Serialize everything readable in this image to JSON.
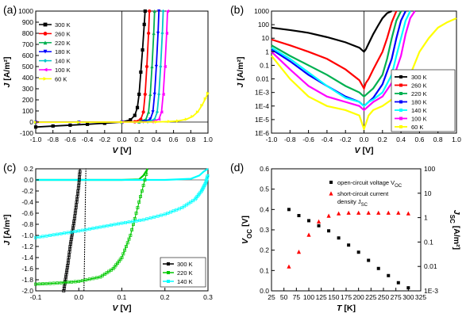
{
  "chart_data": [
    {
      "panel": "(a)",
      "type": "line",
      "xlabel": "V [V]",
      "ylabel": "J [A/m²]",
      "xlim": [
        -1.0,
        1.0
      ],
      "ylim": [
        -100,
        1000
      ],
      "log_y": false,
      "grid": false,
      "legend_position": "top-left",
      "xticks": [
        "-1.0",
        "-0.8",
        "-0.6",
        "-0.4",
        "-0.2",
        "0.0",
        "0.2",
        "0.4",
        "0.6",
        "0.8",
        "1.0"
      ],
      "yticks": [
        "-100",
        "0",
        "100",
        "200",
        "300",
        "400",
        "500",
        "600",
        "700",
        "800",
        "900",
        "1000"
      ],
      "series": [
        {
          "name": "300 K",
          "color": "#000000",
          "marker": "square",
          "x": [
            -1.0,
            -0.8,
            -0.6,
            -0.4,
            -0.2,
            0.0,
            0.1,
            0.15,
            0.18,
            0.2,
            0.22,
            0.24,
            0.26,
            0.27
          ],
          "y": [
            -45,
            -36,
            -28,
            -20,
            -11,
            0,
            20,
            60,
            130,
            250,
            450,
            650,
            880,
            1000
          ]
        },
        {
          "name": "260 K",
          "color": "#ff0000",
          "marker": "circle",
          "x": [
            -1.0,
            -0.5,
            0.0,
            0.15,
            0.22,
            0.25,
            0.27,
            0.29,
            0.31,
            0.32
          ],
          "y": [
            -2,
            -1,
            0,
            3,
            25,
            90,
            250,
            500,
            800,
            1000
          ]
        },
        {
          "name": "220 K",
          "color": "#00b050",
          "marker": "triangle-up",
          "x": [
            -1.0,
            -0.5,
            0.0,
            0.2,
            0.28,
            0.31,
            0.33,
            0.35,
            0.37,
            0.38
          ],
          "y": [
            -1,
            -1,
            0,
            2,
            25,
            90,
            250,
            500,
            800,
            1000
          ]
        },
        {
          "name": "180 K",
          "color": "#0000ff",
          "marker": "triangle-down",
          "x": [
            -1.0,
            -0.5,
            0.0,
            0.25,
            0.33,
            0.36,
            0.38,
            0.4,
            0.42,
            0.43
          ],
          "y": [
            -1,
            -1,
            0,
            2,
            25,
            90,
            250,
            500,
            800,
            1000
          ]
        },
        {
          "name": "140 K",
          "color": "#00c8c8",
          "marker": "diamond",
          "x": [
            -1.0,
            -0.5,
            0.0,
            0.3,
            0.38,
            0.41,
            0.43,
            0.45,
            0.47,
            0.48
          ],
          "y": [
            -1,
            -1,
            0,
            2,
            25,
            90,
            250,
            500,
            800,
            1000
          ]
        },
        {
          "name": "100 K",
          "color": "#ff00ff",
          "marker": "triangle-left",
          "x": [
            -1.0,
            -0.5,
            0.0,
            0.35,
            0.43,
            0.46,
            0.48,
            0.5,
            0.52,
            0.53
          ],
          "y": [
            -1,
            -1,
            0,
            2,
            25,
            90,
            250,
            500,
            800,
            1000
          ]
        },
        {
          "name": "60 K",
          "color": "#ffff00",
          "marker": "triangle-right",
          "x": [
            -1.0,
            -0.5,
            0.0,
            0.4,
            0.55,
            0.65,
            0.75,
            0.82,
            0.88,
            0.93,
            0.97,
            1.0
          ],
          "y": [
            -1,
            -1,
            0,
            1,
            5,
            10,
            25,
            50,
            90,
            150,
            210,
            260
          ]
        }
      ]
    },
    {
      "panel": "(b)",
      "type": "line",
      "xlabel": "V [V]",
      "ylabel": "J [A/m²]",
      "xlim": [
        -1.0,
        1.0
      ],
      "ylim": [
        1e-06,
        1000
      ],
      "log_y": true,
      "grid": false,
      "legend_position": "bottom-right",
      "xticks": [
        "-1.0",
        "-0.8",
        "-0.6",
        "-0.4",
        "-0.2",
        "0.0",
        "0.2",
        "0.4",
        "0.6",
        "0.8",
        "1.0"
      ],
      "yticks": [
        "1000",
        "100",
        "10",
        "1",
        "0.1",
        "0.01",
        "1E-3",
        "1E-4",
        "1E-5",
        "1E-6"
      ],
      "series": [
        {
          "name": "300 K",
          "color": "#000000",
          "x": [
            -1.0,
            -0.8,
            -0.6,
            -0.4,
            -0.2,
            -0.05,
            0.0,
            0.02,
            0.05,
            0.1,
            0.15,
            0.2,
            0.25,
            0.3
          ],
          "y": [
            60,
            40,
            25,
            12,
            5,
            2,
            1,
            1.5,
            4,
            20,
            80,
            300,
            700,
            1000
          ]
        },
        {
          "name": "260 K",
          "color": "#ff0000",
          "x": [
            -1.0,
            -0.8,
            -0.6,
            -0.4,
            -0.2,
            -0.05,
            0.0,
            0.02,
            0.05,
            0.1,
            0.2,
            0.25,
            0.3,
            0.35
          ],
          "y": [
            8,
            3,
            1,
            0.3,
            0.05,
            0.008,
            0.002,
            0.005,
            0.01,
            0.05,
            1,
            10,
            150,
            1000
          ]
        },
        {
          "name": "220 K",
          "color": "#00b050",
          "x": [
            -1.0,
            -0.8,
            -0.6,
            -0.4,
            -0.2,
            -0.05,
            0.0,
            0.05,
            0.1,
            0.2,
            0.25,
            0.3,
            0.35,
            0.4
          ],
          "y": [
            3,
            0.5,
            0.1,
            0.02,
            0.003,
            0.001,
            0.0005,
            0.001,
            0.002,
            0.02,
            0.3,
            10,
            200,
            1000
          ]
        },
        {
          "name": "180 K",
          "color": "#0000ff",
          "x": [
            -1.0,
            -0.8,
            -0.6,
            -0.4,
            -0.2,
            -0.05,
            0.0,
            0.05,
            0.1,
            0.2,
            0.3,
            0.35,
            0.4,
            0.45
          ],
          "y": [
            1.5,
            0.2,
            0.02,
            0.003,
            0.0005,
            0.0002,
            0.0001,
            0.0002,
            0.0004,
            0.004,
            0.3,
            10,
            200,
            1000
          ]
        },
        {
          "name": "140 K",
          "color": "#00ffff",
          "x": [
            -1.0,
            -0.8,
            -0.6,
            -0.4,
            -0.2,
            -0.05,
            0.0,
            0.05,
            0.1,
            0.2,
            0.3,
            0.35,
            0.4,
            0.45,
            0.5
          ],
          "y": [
            2,
            0.3,
            0.03,
            0.003,
            0.0004,
            0.0002,
            0.0001,
            0.0002,
            0.0003,
            0.001,
            0.02,
            0.5,
            10,
            200,
            1000
          ]
        },
        {
          "name": "100 K",
          "color": "#ff00ff",
          "x": [
            -1.0,
            -0.8,
            -0.6,
            -0.4,
            -0.2,
            -0.05,
            0.0,
            0.05,
            0.1,
            0.2,
            0.3,
            0.4,
            0.45,
            0.5,
            0.55
          ],
          "y": [
            1,
            0.05,
            0.003,
            0.0005,
            0.0002,
            0.0001,
            5e-05,
            0.0001,
            0.0002,
            0.0005,
            0.005,
            0.5,
            20,
            300,
            1000
          ]
        },
        {
          "name": "60 K",
          "color": "#ffff00",
          "x": [
            -1.0,
            -0.8,
            -0.6,
            -0.4,
            -0.2,
            -0.05,
            0.0,
            0.05,
            0.1,
            0.2,
            0.3,
            0.4,
            0.5,
            0.6,
            0.7,
            0.8,
            0.9,
            1.0
          ],
          "y": [
            0.5,
            0.01,
            0.0005,
            0.0001,
            5e-05,
            2e-05,
            2e-06,
            2e-05,
            5e-05,
            0.0001,
            0.0003,
            0.001,
            0.02,
            1,
            10,
            60,
            150,
            300
          ]
        }
      ]
    },
    {
      "panel": "(c)",
      "type": "line",
      "xlabel": "V [V]",
      "ylabel": "J [A/m²]",
      "xlim": [
        -0.1,
        0.3
      ],
      "ylim": [
        -2.0,
        0.2
      ],
      "log_y": false,
      "grid": false,
      "legend_position": "bottom-right",
      "xticks": [
        "-0.1",
        "0.0",
        "0.1",
        "0.2",
        "0.3"
      ],
      "yticks": [
        "0.2",
        "0.0",
        "-0.2",
        "-0.4",
        "-0.6",
        "-0.8",
        "-1.0",
        "-1.2",
        "-1.4",
        "-1.6",
        "-1.8",
        "-2.0"
      ],
      "series": [
        {
          "name": "300 K",
          "color": "#000000",
          "x": [
            -0.035,
            -0.03,
            -0.025,
            -0.02,
            -0.015,
            -0.01,
            -0.005,
            0.0,
            0.003
          ],
          "y": [
            -2.0,
            -1.75,
            -1.5,
            -1.2,
            -0.95,
            -0.7,
            -0.4,
            -0.1,
            0.2
          ]
        },
        {
          "name": "220 K",
          "color": "#00c800",
          "x": [
            -0.1,
            -0.05,
            0.0,
            0.05,
            0.08,
            0.1,
            0.12,
            0.14,
            0.16
          ],
          "y": [
            -1.88,
            -1.86,
            -1.83,
            -1.75,
            -1.6,
            -1.4,
            -1.0,
            -0.4,
            0.2
          ]
        },
        {
          "name": "140 K",
          "color": "#00ffff",
          "x": [
            -0.1,
            -0.05,
            0.0,
            0.05,
            0.1,
            0.15,
            0.2,
            0.24,
            0.27,
            0.285,
            0.295,
            0.3
          ],
          "y": [
            -1.04,
            -0.98,
            -0.92,
            -0.85,
            -0.78,
            -0.72,
            -0.62,
            -0.5,
            -0.35,
            -0.2,
            -0.05,
            0.1
          ]
        }
      ],
      "extra_curves": [
        {
          "color": "#000000",
          "dashed": true,
          "x": [
            0.012,
            0.0135,
            0.015,
            0.0165
          ],
          "y": [
            -2.0,
            -1.3,
            -0.5,
            0.2
          ]
        },
        {
          "color": "#00c800",
          "x": [
            -0.1,
            0.0,
            0.1,
            0.14,
            0.15,
            0.16
          ],
          "y": [
            0.0,
            0.0,
            0.0,
            0.01,
            0.08,
            0.2
          ]
        },
        {
          "color": "#00ffff",
          "x": [
            -0.1,
            0.0,
            0.1,
            0.2,
            0.26,
            0.28,
            0.29,
            0.3
          ],
          "y": [
            0.0,
            0.0,
            0.0,
            0.0,
            0.02,
            0.08,
            0.15,
            0.2
          ]
        }
      ]
    },
    {
      "panel": "(d)",
      "type": "scatter",
      "xlabel": "T [K]",
      "ylabel_left": "V_OC [V]",
      "ylabel_right": "J_SC [A/m²]",
      "xlim": [
        25,
        325
      ],
      "ylim_left": [
        0,
        0.6
      ],
      "ylim_right": [
        0.001,
        100
      ],
      "log_y_right": true,
      "grid": false,
      "legend_position": "top-right",
      "xticks": [
        "25",
        "50",
        "75",
        "100",
        "125",
        "150",
        "175",
        "200",
        "225",
        "250",
        "275",
        "300",
        "325"
      ],
      "yticks_left": [
        "0.0",
        "0.1",
        "0.2",
        "0.3",
        "0.4",
        "0.5",
        "0.6"
      ],
      "yticks_right": [
        "100",
        "10",
        "1",
        "0.1",
        "0.01",
        "1E-3"
      ],
      "series": [
        {
          "name": "open-circuit voltage V_OC",
          "color": "#000000",
          "marker": "square",
          "axis": "left",
          "x": [
            60,
            80,
            100,
            120,
            140,
            160,
            180,
            200,
            220,
            240,
            260,
            280,
            300
          ],
          "y": [
            0.4,
            0.37,
            0.345,
            0.32,
            0.295,
            0.26,
            0.225,
            0.19,
            0.15,
            0.11,
            0.075,
            0.04,
            0.015
          ]
        },
        {
          "name": "short-circuit current density J_SC",
          "color": "#ff0000",
          "marker": "triangle-up",
          "axis": "right",
          "x": [
            60,
            80,
            100,
            120,
            140,
            160,
            180,
            200,
            220,
            240,
            260,
            280,
            300
          ],
          "y": [
            0.01,
            0.04,
            0.2,
            0.7,
            1.2,
            1.5,
            1.6,
            1.6,
            1.6,
            1.6,
            1.6,
            1.6,
            1.5
          ]
        }
      ]
    }
  ],
  "legend_labels": {
    "a": [
      "300 K",
      "260 K",
      "220 K",
      "180 K",
      "140 K",
      "100 K",
      "60 K"
    ],
    "b": [
      "300 K",
      "260 K",
      "220 K",
      "180 K",
      "140 K",
      "100 K",
      "60 K"
    ],
    "c": [
      "300 K",
      "220 K",
      "140 K"
    ],
    "d_voc": "open-circuit voltage V",
    "d_voc_sub": "OC",
    "d_jsc_1": "short-circuit current",
    "d_jsc_2": "density J",
    "d_jsc_sub": "SC"
  },
  "axis_text": {
    "V": "V",
    "V_unit": " [V]",
    "J": "J",
    "J_unit": " [A/m²]",
    "T": "T",
    "T_unit": " [K]",
    "Voc_main": "V",
    "Voc_sub": "OC",
    "Voc_unit": " [V]",
    "Jsc_main": "J",
    "Jsc_sub": "SC",
    "Jsc_unit": " [A/m²]"
  }
}
